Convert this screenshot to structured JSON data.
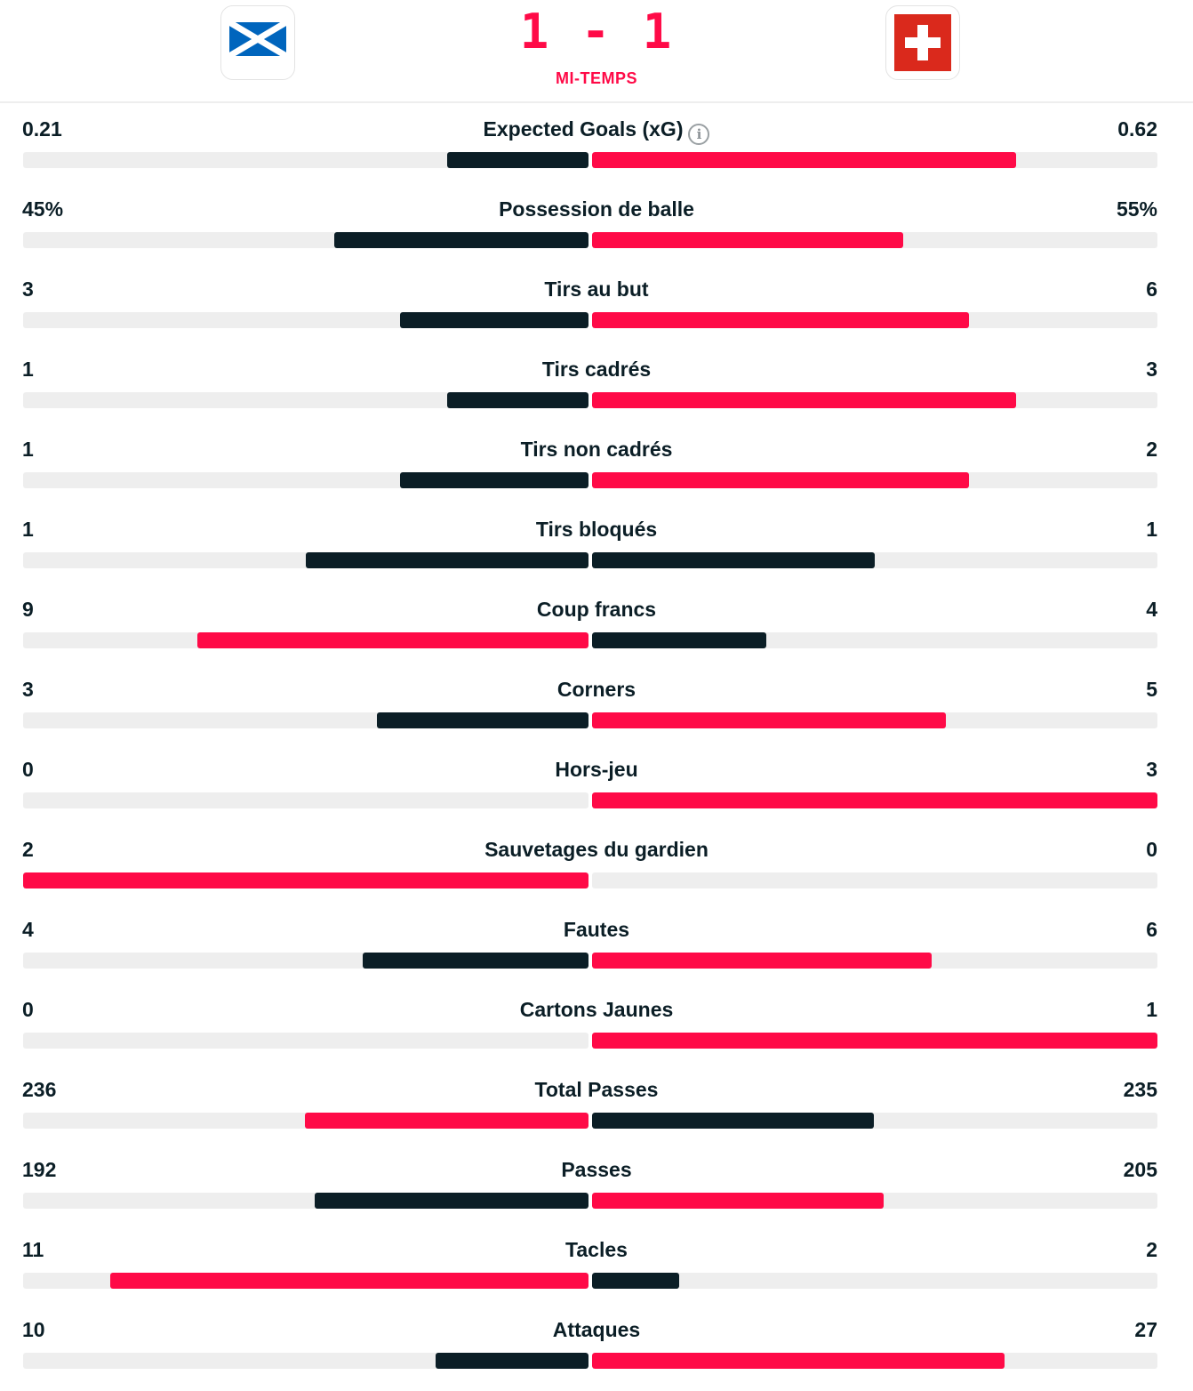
{
  "match": {
    "home_flag": "scotland-flag",
    "away_flag": "switzerland-flag",
    "score": "1 - 1",
    "period": "MI-TEMPS"
  },
  "colors": {
    "accent": "#ff0a47",
    "dark": "#0b1e26",
    "track": "#eeeeee"
  },
  "stats": [
    {
      "label": "Expected Goals (xG)",
      "home": "0.21",
      "away": "0.62",
      "home_share": 0.25,
      "away_share": 0.75,
      "leader": "away",
      "info": true
    },
    {
      "label": "Possession de balle",
      "home": "45%",
      "away": "55%",
      "home_share": 0.45,
      "away_share": 0.55,
      "leader": "away"
    },
    {
      "label": "Tirs au but",
      "home": "3",
      "away": "6",
      "home_share": 0.333,
      "away_share": 0.667,
      "leader": "away"
    },
    {
      "label": "Tirs cadrés",
      "home": "1",
      "away": "3",
      "home_share": 0.25,
      "away_share": 0.75,
      "leader": "away"
    },
    {
      "label": "Tirs non cadrés",
      "home": "1",
      "away": "2",
      "home_share": 0.333,
      "away_share": 0.667,
      "leader": "away"
    },
    {
      "label": "Tirs bloqués",
      "home": "1",
      "away": "1",
      "home_share": 0.5,
      "away_share": 0.5,
      "leader": "none"
    },
    {
      "label": "Coup francs",
      "home": "9",
      "away": "4",
      "home_share": 0.692,
      "away_share": 0.308,
      "leader": "home"
    },
    {
      "label": "Corners",
      "home": "3",
      "away": "5",
      "home_share": 0.375,
      "away_share": 0.625,
      "leader": "away"
    },
    {
      "label": "Hors-jeu",
      "home": "0",
      "away": "3",
      "home_share": 0,
      "away_share": 1,
      "leader": "away"
    },
    {
      "label": "Sauvetages du gardien",
      "home": "2",
      "away": "0",
      "home_share": 1,
      "away_share": 0,
      "leader": "home"
    },
    {
      "label": "Fautes",
      "home": "4",
      "away": "6",
      "home_share": 0.4,
      "away_share": 0.6,
      "leader": "away"
    },
    {
      "label": "Cartons Jaunes",
      "home": "0",
      "away": "1",
      "home_share": 0,
      "away_share": 1,
      "leader": "away"
    },
    {
      "label": "Total Passes",
      "home": "236",
      "away": "235",
      "home_share": 0.501,
      "away_share": 0.499,
      "leader": "home"
    },
    {
      "label": "Passes",
      "home": "192",
      "away": "205",
      "home_share": 0.484,
      "away_share": 0.516,
      "leader": "away"
    },
    {
      "label": "Tacles",
      "home": "11",
      "away": "2",
      "home_share": 0.846,
      "away_share": 0.154,
      "leader": "home"
    },
    {
      "label": "Attaques",
      "home": "10",
      "away": "27",
      "home_share": 0.27,
      "away_share": 0.73,
      "leader": "away"
    }
  ]
}
